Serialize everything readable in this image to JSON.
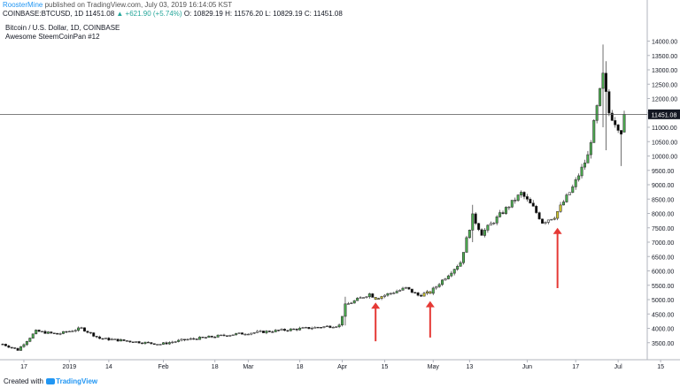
{
  "header": {
    "author": "RoosterMine",
    "published_text": "published on TradingView.com, July 03, 2019 16:14:05 KST"
  },
  "quote": {
    "symbol": "COINBASE:BTCUSD, 1D",
    "last": "11451.08",
    "change": "▲ +621.90 (+5.74%)",
    "ohlc_o": "O: 10829.19",
    "ohlc_h": "H: 11576.20",
    "ohlc_l": "L: 10829.19",
    "ohlc_c": "C: 11451.08"
  },
  "legend": {
    "title": "Bitcoin / U.S. Dollar, 1D, COINBASE",
    "subtitle": "Awesome SteemCoinPan #12"
  },
  "footer": {
    "created_with": "Created with",
    "brand": "TradingView"
  },
  "colors": {
    "up": "#26a69a",
    "up_highlight": "#4caf50",
    "down": "#000000",
    "hollow": "#ffffff",
    "arrow": "#e53935",
    "yellow": "#d4c92a",
    "price_line": "#555555"
  },
  "chart_data": {
    "type": "candlestick",
    "last_price_label": "11451.08",
    "ylim": [
      3000,
      14500
    ],
    "y_ticks": [
      "3500.00",
      "4000.00",
      "4500.00",
      "5000.00",
      "5500.00",
      "6000.00",
      "6500.00",
      "7000.00",
      "7500.00",
      "8000.00",
      "8500.00",
      "9000.00",
      "9500.00",
      "10000.00",
      "10500.00",
      "11000.00",
      "11500.00",
      "12000.00",
      "12500.00",
      "13000.00",
      "13500.00",
      "14000.00"
    ],
    "x_ticks": [
      {
        "label": "17",
        "date": "2018-12-17"
      },
      {
        "label": "2019",
        "date": "2019-01-01"
      },
      {
        "label": "14",
        "date": "2019-01-14"
      },
      {
        "label": "Feb",
        "date": "2019-02-01"
      },
      {
        "label": "18",
        "date": "2019-02-18"
      },
      {
        "label": "Mar",
        "date": "2019-03-01"
      },
      {
        "label": "18",
        "date": "2019-03-18"
      },
      {
        "label": "Apr",
        "date": "2019-04-01"
      },
      {
        "label": "15",
        "date": "2019-04-15"
      },
      {
        "label": "May",
        "date": "2019-05-01"
      },
      {
        "label": "13",
        "date": "2019-05-13"
      },
      {
        "label": "Jun",
        "date": "2019-06-01"
      },
      {
        "label": "17",
        "date": "2019-06-17"
      },
      {
        "label": "Jul",
        "date": "2019-07-01"
      },
      {
        "label": "15",
        "date": "2019-07-15"
      }
    ],
    "anchors": [
      {
        "date": "2018-12-10",
        "price": 3450
      },
      {
        "date": "2018-12-15",
        "price": 3250
      },
      {
        "date": "2018-12-21",
        "price": 3900
      },
      {
        "date": "2018-12-28",
        "price": 3800
      },
      {
        "date": "2019-01-05",
        "price": 4000
      },
      {
        "date": "2019-01-11",
        "price": 3650
      },
      {
        "date": "2019-01-31",
        "price": 3450
      },
      {
        "date": "2019-02-08",
        "price": 3600
      },
      {
        "date": "2019-02-25",
        "price": 3800
      },
      {
        "date": "2019-03-31",
        "price": 4100
      },
      {
        "date": "2019-04-02",
        "price": 4800
      },
      {
        "date": "2019-04-10",
        "price": 5200
      },
      {
        "date": "2019-04-12",
        "price": 5050
      },
      {
        "date": "2019-04-22",
        "price": 5400
      },
      {
        "date": "2019-04-26",
        "price": 5150
      },
      {
        "date": "2019-04-30",
        "price": 5250
      },
      {
        "date": "2019-05-10",
        "price": 6300
      },
      {
        "date": "2019-05-14",
        "price": 7900
      },
      {
        "date": "2019-05-17",
        "price": 7300
      },
      {
        "date": "2019-05-30",
        "price": 8700
      },
      {
        "date": "2019-06-03",
        "price": 8200
      },
      {
        "date": "2019-06-06",
        "price": 7700
      },
      {
        "date": "2019-06-10",
        "price": 7900
      },
      {
        "date": "2019-06-16",
        "price": 8900
      },
      {
        "date": "2019-06-21",
        "price": 10000
      },
      {
        "date": "2019-06-26",
        "price": 12800
      },
      {
        "date": "2019-06-28",
        "price": 11500
      },
      {
        "date": "2019-07-02",
        "price": 10850
      },
      {
        "date": "2019-07-03",
        "price": 11451
      }
    ],
    "highlights": [
      {
        "from": "2019-04-12",
        "to": "2019-04-14",
        "color": "yellow"
      },
      {
        "from": "2019-04-28",
        "to": "2019-04-30",
        "color": "yellow"
      },
      {
        "from": "2019-06-10",
        "to": "2019-06-12",
        "color": "yellow"
      }
    ],
    "big_moves": [
      {
        "date": "2019-04-02",
        "h": 5100,
        "l": 4100
      },
      {
        "date": "2019-05-14",
        "h": 8300,
        "l": 7000
      },
      {
        "date": "2019-06-26",
        "h": 13880,
        "l": 11000
      },
      {
        "date": "2019-06-27",
        "h": 13300,
        "l": 10200
      },
      {
        "date": "2019-07-02",
        "h": 10900,
        "l": 9650
      }
    ],
    "arrows": [
      {
        "date": "2019-04-12",
        "tip": 4900,
        "tail": 3550
      },
      {
        "date": "2019-04-30",
        "tip": 4950,
        "tail": 3680
      },
      {
        "date": "2019-06-11",
        "tip": 7500,
        "tail": 5400
      }
    ]
  }
}
